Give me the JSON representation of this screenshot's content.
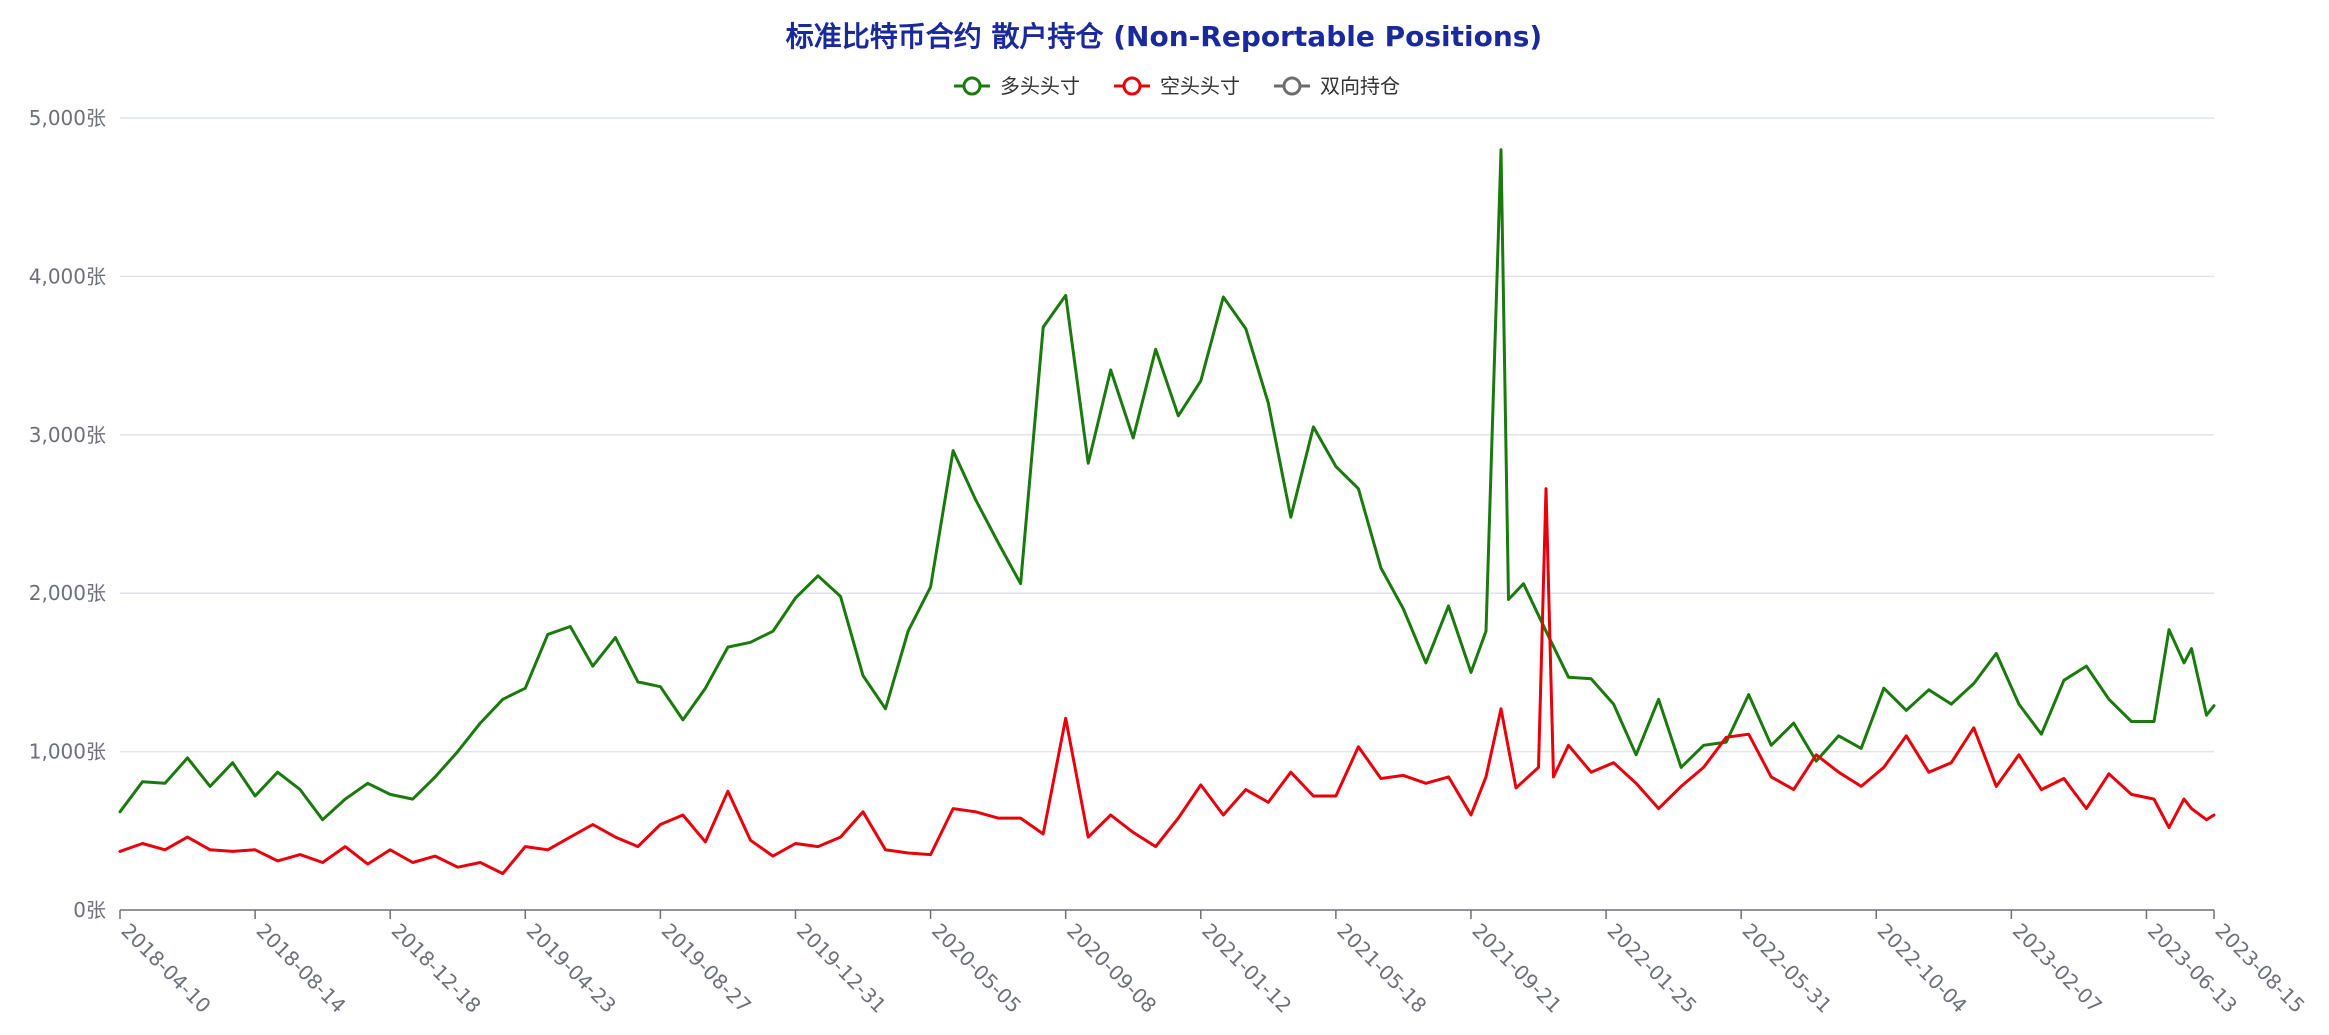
{
  "chart_data": {
    "type": "line",
    "title": "标准比特币合约 散户持仓 (Non-Reportable Positions)",
    "y_unit": "张",
    "ylim": [
      0,
      5000
    ],
    "y_ticks": [
      "0张",
      "1,000张",
      "2,000张",
      "3,000张",
      "4,000张",
      "5,000张"
    ],
    "x_ticks": [
      "2018-04-10",
      "2018-08-14",
      "2018-12-18",
      "2019-04-23",
      "2019-08-27",
      "2019-12-31",
      "2020-05-05",
      "2020-09-08",
      "2021-01-12",
      "2021-05-18",
      "2021-09-21",
      "2022-01-25",
      "2022-05-31",
      "2022-10-04",
      "2023-02-07",
      "2023-06-13",
      "2023-08-15"
    ],
    "x_range": [
      "2018-04-10",
      "2023-08-15"
    ],
    "grid": true,
    "legend_position": "top-center",
    "series": [
      {
        "name": "多头头寸",
        "color": "#1a7a0d",
        "points": [
          [
            "2018-04-10",
            620
          ],
          [
            "2018-05-01",
            810
          ],
          [
            "2018-05-22",
            800
          ],
          [
            "2018-06-12",
            960
          ],
          [
            "2018-07-03",
            780
          ],
          [
            "2018-07-24",
            930
          ],
          [
            "2018-08-14",
            720
          ],
          [
            "2018-09-04",
            870
          ],
          [
            "2018-09-25",
            760
          ],
          [
            "2018-10-16",
            570
          ],
          [
            "2018-11-06",
            700
          ],
          [
            "2018-11-27",
            800
          ],
          [
            "2018-12-18",
            730
          ],
          [
            "2019-01-08",
            700
          ],
          [
            "2019-01-29",
            840
          ],
          [
            "2019-02-19",
            1000
          ],
          [
            "2019-03-12",
            1180
          ],
          [
            "2019-04-02",
            1330
          ],
          [
            "2019-04-23",
            1400
          ],
          [
            "2019-05-14",
            1740
          ],
          [
            "2019-06-04",
            1790
          ],
          [
            "2019-06-25",
            1540
          ],
          [
            "2019-07-16",
            1720
          ],
          [
            "2019-08-06",
            1440
          ],
          [
            "2019-08-27",
            1410
          ],
          [
            "2019-09-17",
            1200
          ],
          [
            "2019-10-08",
            1400
          ],
          [
            "2019-10-29",
            1660
          ],
          [
            "2019-11-19",
            1690
          ],
          [
            "2019-12-10",
            1760
          ],
          [
            "2019-12-31",
            1970
          ],
          [
            "2020-01-21",
            2110
          ],
          [
            "2020-02-11",
            1980
          ],
          [
            "2020-03-03",
            1480
          ],
          [
            "2020-03-24",
            1270
          ],
          [
            "2020-04-14",
            1760
          ],
          [
            "2020-05-05",
            2040
          ],
          [
            "2020-05-26",
            2900
          ],
          [
            "2020-06-16",
            2590
          ],
          [
            "2020-07-07",
            2320
          ],
          [
            "2020-07-28",
            2060
          ],
          [
            "2020-08-18",
            3680
          ],
          [
            "2020-09-08",
            3880
          ],
          [
            "2020-09-29",
            2820
          ],
          [
            "2020-10-20",
            3410
          ],
          [
            "2020-11-10",
            2980
          ],
          [
            "2020-12-01",
            3540
          ],
          [
            "2020-12-22",
            3120
          ],
          [
            "2021-01-12",
            3340
          ],
          [
            "2021-02-02",
            3870
          ],
          [
            "2021-02-23",
            3670
          ],
          [
            "2021-03-16",
            3200
          ],
          [
            "2021-04-06",
            2480
          ],
          [
            "2021-04-27",
            3050
          ],
          [
            "2021-05-18",
            2800
          ],
          [
            "2021-06-08",
            2660
          ],
          [
            "2021-06-29",
            2160
          ],
          [
            "2021-07-20",
            1900
          ],
          [
            "2021-08-10",
            1560
          ],
          [
            "2021-08-31",
            1920
          ],
          [
            "2021-09-21",
            1500
          ],
          [
            "2021-10-05",
            1760
          ],
          [
            "2021-10-19",
            4800
          ],
          [
            "2021-10-26",
            1960
          ],
          [
            "2021-11-09",
            2060
          ],
          [
            "2021-11-30",
            1760
          ],
          [
            "2021-12-21",
            1470
          ],
          [
            "2022-01-11",
            1460
          ],
          [
            "2022-02-01",
            1300
          ],
          [
            "2022-02-22",
            980
          ],
          [
            "2022-03-15",
            1330
          ],
          [
            "2022-04-05",
            900
          ],
          [
            "2022-04-26",
            1040
          ],
          [
            "2022-05-17",
            1060
          ],
          [
            "2022-06-07",
            1360
          ],
          [
            "2022-06-28",
            1040
          ],
          [
            "2022-07-19",
            1180
          ],
          [
            "2022-08-09",
            940
          ],
          [
            "2022-08-30",
            1100
          ],
          [
            "2022-09-20",
            1020
          ],
          [
            "2022-10-11",
            1400
          ],
          [
            "2022-11-01",
            1260
          ],
          [
            "2022-11-22",
            1390
          ],
          [
            "2022-12-13",
            1300
          ],
          [
            "2023-01-03",
            1430
          ],
          [
            "2023-01-24",
            1620
          ],
          [
            "2023-02-14",
            1300
          ],
          [
            "2023-03-07",
            1110
          ],
          [
            "2023-03-28",
            1450
          ],
          [
            "2023-04-18",
            1540
          ],
          [
            "2023-05-09",
            1330
          ],
          [
            "2023-05-30",
            1190
          ],
          [
            "2023-06-20",
            1190
          ],
          [
            "2023-07-04",
            1770
          ],
          [
            "2023-07-18",
            1560
          ],
          [
            "2023-07-25",
            1650
          ],
          [
            "2023-08-08",
            1230
          ],
          [
            "2023-08-15",
            1290
          ]
        ]
      },
      {
        "name": "空头头寸",
        "color": "#e8000b",
        "points": [
          [
            "2018-04-10",
            370
          ],
          [
            "2018-05-01",
            420
          ],
          [
            "2018-05-22",
            380
          ],
          [
            "2018-06-12",
            460
          ],
          [
            "2018-07-03",
            380
          ],
          [
            "2018-07-24",
            370
          ],
          [
            "2018-08-14",
            380
          ],
          [
            "2018-09-04",
            310
          ],
          [
            "2018-09-25",
            350
          ],
          [
            "2018-10-16",
            300
          ],
          [
            "2018-11-06",
            400
          ],
          [
            "2018-11-27",
            290
          ],
          [
            "2018-12-18",
            380
          ],
          [
            "2019-01-08",
            300
          ],
          [
            "2019-01-29",
            340
          ],
          [
            "2019-02-19",
            270
          ],
          [
            "2019-03-12",
            300
          ],
          [
            "2019-04-02",
            230
          ],
          [
            "2019-04-23",
            400
          ],
          [
            "2019-05-14",
            380
          ],
          [
            "2019-06-04",
            460
          ],
          [
            "2019-06-25",
            540
          ],
          [
            "2019-07-16",
            460
          ],
          [
            "2019-08-06",
            400
          ],
          [
            "2019-08-27",
            540
          ],
          [
            "2019-09-17",
            600
          ],
          [
            "2019-10-08",
            430
          ],
          [
            "2019-10-29",
            750
          ],
          [
            "2019-11-19",
            440
          ],
          [
            "2019-12-10",
            340
          ],
          [
            "2019-12-31",
            420
          ],
          [
            "2020-01-21",
            400
          ],
          [
            "2020-02-11",
            460
          ],
          [
            "2020-03-03",
            620
          ],
          [
            "2020-03-24",
            380
          ],
          [
            "2020-04-14",
            360
          ],
          [
            "2020-05-05",
            350
          ],
          [
            "2020-05-26",
            640
          ],
          [
            "2020-06-16",
            620
          ],
          [
            "2020-07-07",
            580
          ],
          [
            "2020-07-28",
            580
          ],
          [
            "2020-08-18",
            480
          ],
          [
            "2020-09-08",
            1210
          ],
          [
            "2020-09-29",
            460
          ],
          [
            "2020-10-20",
            600
          ],
          [
            "2020-11-10",
            490
          ],
          [
            "2020-12-01",
            400
          ],
          [
            "2020-12-22",
            580
          ],
          [
            "2021-01-12",
            790
          ],
          [
            "2021-02-02",
            600
          ],
          [
            "2021-02-23",
            760
          ],
          [
            "2021-03-16",
            680
          ],
          [
            "2021-04-06",
            870
          ],
          [
            "2021-04-27",
            720
          ],
          [
            "2021-05-18",
            720
          ],
          [
            "2021-06-08",
            1030
          ],
          [
            "2021-06-29",
            830
          ],
          [
            "2021-07-20",
            850
          ],
          [
            "2021-08-10",
            800
          ],
          [
            "2021-08-31",
            840
          ],
          [
            "2021-09-21",
            600
          ],
          [
            "2021-10-05",
            840
          ],
          [
            "2021-10-19",
            1270
          ],
          [
            "2021-11-02",
            770
          ],
          [
            "2021-11-23",
            900
          ],
          [
            "2021-11-30",
            2660
          ],
          [
            "2021-12-07",
            840
          ],
          [
            "2021-12-21",
            1040
          ],
          [
            "2022-01-11",
            870
          ],
          [
            "2022-02-01",
            930
          ],
          [
            "2022-02-22",
            800
          ],
          [
            "2022-03-15",
            640
          ],
          [
            "2022-04-05",
            780
          ],
          [
            "2022-04-26",
            900
          ],
          [
            "2022-05-17",
            1090
          ],
          [
            "2022-06-07",
            1110
          ],
          [
            "2022-06-28",
            840
          ],
          [
            "2022-07-19",
            760
          ],
          [
            "2022-08-09",
            980
          ],
          [
            "2022-08-30",
            870
          ],
          [
            "2022-09-20",
            780
          ],
          [
            "2022-10-11",
            900
          ],
          [
            "2022-11-01",
            1100
          ],
          [
            "2022-11-22",
            870
          ],
          [
            "2022-12-13",
            930
          ],
          [
            "2023-01-03",
            1150
          ],
          [
            "2023-01-24",
            780
          ],
          [
            "2023-02-14",
            980
          ],
          [
            "2023-03-07",
            760
          ],
          [
            "2023-03-28",
            830
          ],
          [
            "2023-04-18",
            640
          ],
          [
            "2023-05-09",
            860
          ],
          [
            "2023-05-30",
            730
          ],
          [
            "2023-06-20",
            700
          ],
          [
            "2023-07-04",
            520
          ],
          [
            "2023-07-18",
            700
          ],
          [
            "2023-07-25",
            640
          ],
          [
            "2023-08-08",
            570
          ],
          [
            "2023-08-15",
            600
          ]
        ]
      },
      {
        "name": "双向持仓",
        "color": "#6e6e6e",
        "points": []
      }
    ]
  }
}
